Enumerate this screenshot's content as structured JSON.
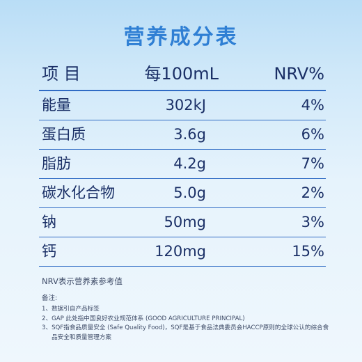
{
  "title": "营养成分表",
  "table": {
    "headers": {
      "item": "项 目",
      "amount": "每100mL",
      "nrv": "NRV%"
    },
    "rows": [
      {
        "name": "能量",
        "amount": "302kJ",
        "nrv": "4%"
      },
      {
        "name": "蛋白质",
        "amount": "3.6g",
        "nrv": "6%"
      },
      {
        "name": "脂肪",
        "amount": "4.2g",
        "nrv": "7%"
      },
      {
        "name": "碳水化合物",
        "amount": "5.0g",
        "nrv": "2%"
      },
      {
        "name": "钠",
        "amount": "50mg",
        "nrv": "3%"
      },
      {
        "name": "钙",
        "amount": "120mg",
        "nrv": "15%"
      }
    ]
  },
  "footer": {
    "nrv_note": "NRV表示营养素参考值",
    "remarks_title": "备注:",
    "notes": [
      {
        "num": "1、",
        "text": "数据引自产品标签"
      },
      {
        "num": "2、",
        "text": "GAP 此处指中国良好农业规范体系 (GOOD AGRICULTURE PRINCIPAL)"
      },
      {
        "num": "3、",
        "text": "SQF指食品质量安全 (Safe Quality Food)，SQF是基于食品法典委员会HACCP原则的全球公认的综合食品安全和质量管理方案"
      }
    ]
  }
}
